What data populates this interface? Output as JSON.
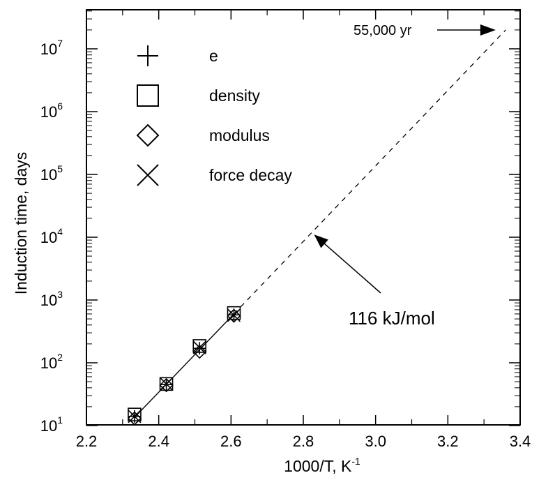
{
  "chart_data": {
    "type": "scatter",
    "xlabel": "1000/T, K",
    "xlabel_sup": "-1",
    "ylabel": "Induction time, days",
    "xlim": [
      2.2,
      3.4
    ],
    "ylim": [
      10,
      50000000
    ],
    "yscale": "log",
    "x_ticks": [
      "2.2",
      "2.4",
      "2.6",
      "2.8",
      "3.0",
      "3.2",
      "3.4"
    ],
    "y_ticks": [
      {
        "base": "10",
        "exp": "1"
      },
      {
        "base": "10",
        "exp": "2"
      },
      {
        "base": "10",
        "exp": "3"
      },
      {
        "base": "10",
        "exp": "4"
      },
      {
        "base": "10",
        "exp": "5"
      },
      {
        "base": "10",
        "exp": "6"
      },
      {
        "base": "10",
        "exp": "7"
      }
    ],
    "grid": false,
    "legend_position": "top-left",
    "series": [
      {
        "name": "e",
        "marker": "plus",
        "points": [
          [
            2.333,
            14
          ],
          [
            2.421,
            45
          ],
          [
            2.513,
            170
          ],
          [
            2.608,
            580
          ]
        ]
      },
      {
        "name": "density",
        "marker": "square",
        "points": [
          [
            2.333,
            15
          ],
          [
            2.421,
            46
          ],
          [
            2.513,
            185
          ],
          [
            2.608,
            620
          ]
        ]
      },
      {
        "name": "modulus",
        "marker": "diamond",
        "points": [
          [
            2.333,
            13
          ],
          [
            2.421,
            44
          ],
          [
            2.513,
            150
          ],
          [
            2.608,
            560
          ]
        ]
      },
      {
        "name": "force decay",
        "marker": "x",
        "points": [
          [
            2.333,
            14
          ],
          [
            2.421,
            46
          ],
          [
            2.513,
            175
          ],
          [
            2.608,
            570
          ]
        ]
      }
    ],
    "fit_line": {
      "x": [
        2.333,
        2.608
      ],
      "y": [
        13.5,
        600
      ]
    },
    "extrapolation": {
      "x": [
        2.608,
        3.36
      ],
      "y": [
        600,
        20000000
      ]
    },
    "annotations": [
      {
        "text": "116 kJ/mol",
        "arrow_to": [
          2.83,
          11000
        ]
      },
      {
        "text": "55,000 yr",
        "arrow_to": [
          3.34,
          20000000
        ]
      }
    ]
  }
}
